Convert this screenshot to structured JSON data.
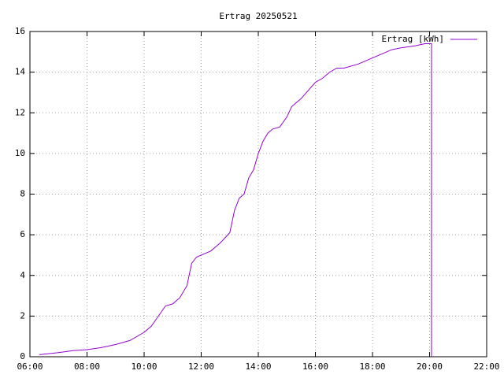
{
  "chart_data": {
    "type": "line",
    "title": "Ertrag 20250521",
    "x": [
      "06:20",
      "07:00",
      "07:30",
      "08:00",
      "08:30",
      "09:00",
      "09:30",
      "10:00",
      "10:15",
      "10:30",
      "10:45",
      "11:00",
      "11:15",
      "11:30",
      "11:40",
      "11:50",
      "12:00",
      "12:20",
      "12:40",
      "13:00",
      "13:10",
      "13:20",
      "13:30",
      "13:40",
      "13:50",
      "14:00",
      "14:10",
      "14:20",
      "14:30",
      "14:45",
      "15:00",
      "15:10",
      "15:20",
      "15:30",
      "15:45",
      "16:00",
      "16:15",
      "16:30",
      "16:45",
      "17:00",
      "17:30",
      "18:00",
      "18:20",
      "18:40",
      "19:00",
      "19:30",
      "19:50",
      "20:04",
      "20:04"
    ],
    "series": [
      {
        "name": "Ertrag [kWh]",
        "color": "#9400d3",
        "values": [
          0.1,
          0.2,
          0.3,
          0.35,
          0.45,
          0.6,
          0.8,
          1.2,
          1.5,
          2.0,
          2.5,
          2.6,
          2.9,
          3.5,
          4.6,
          4.9,
          5.0,
          5.2,
          5.6,
          6.1,
          7.2,
          7.8,
          8.0,
          8.8,
          9.2,
          10.0,
          10.6,
          11.0,
          11.2,
          11.3,
          11.8,
          12.3,
          12.5,
          12.7,
          13.1,
          13.5,
          13.7,
          14.0,
          14.2,
          14.2,
          14.4,
          14.7,
          14.9,
          15.1,
          15.2,
          15.3,
          15.4,
          15.4,
          0
        ]
      }
    ],
    "xlim": [
      "06:00",
      "22:00"
    ],
    "xticks": [
      "06:00",
      "08:00",
      "10:00",
      "12:00",
      "14:00",
      "16:00",
      "18:00",
      "20:00",
      "22:00"
    ],
    "ylim": [
      0,
      16
    ],
    "yticks": [
      0,
      2,
      4,
      6,
      8,
      10,
      12,
      14,
      16
    ],
    "grid": true,
    "legend": "top-right"
  }
}
